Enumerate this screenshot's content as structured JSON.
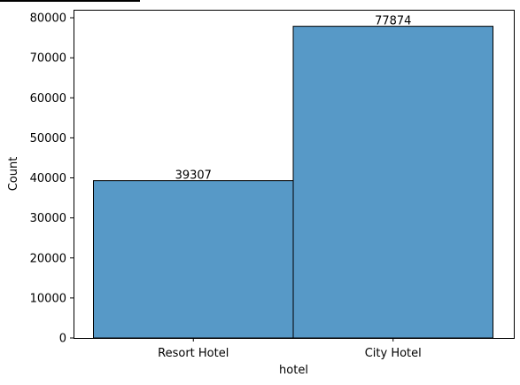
{
  "chart_data": {
    "type": "bar",
    "categories": [
      "Resort Hotel",
      "City Hotel"
    ],
    "values": [
      39307,
      77874
    ],
    "data_labels": [
      "39307",
      "77874"
    ],
    "xlabel": "hotel",
    "ylabel": "Count",
    "ylim": [
      0,
      82000
    ],
    "yticks": [
      0,
      10000,
      20000,
      30000,
      40000,
      50000,
      60000,
      70000,
      80000
    ],
    "grid": false,
    "legend": "none",
    "bar_color": "#5799c7",
    "edge_color": "#000000"
  }
}
